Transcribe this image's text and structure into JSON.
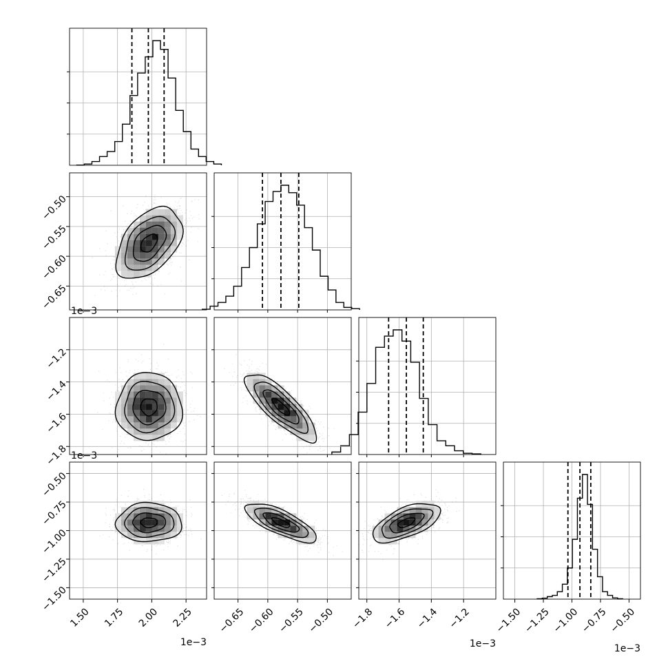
{
  "chart_data": {
    "type": "corner",
    "grid": true,
    "quantiles": [
      0.16,
      0.5,
      0.84
    ],
    "contour_levels": [
      "0.5 sigma",
      "1 sigma",
      "1.5 sigma",
      "2 sigma"
    ],
    "params": [
      {
        "id": "p0",
        "center": 1.98,
        "sd": 0.12,
        "lim": [
          1.4,
          2.4
        ],
        "quantile_values": [
          1.855,
          1.975,
          2.09
        ],
        "ticks": [
          1.5,
          1.75,
          2.0,
          2.25
        ],
        "tick_labels": [
          "1.50",
          "1.75",
          "2.00",
          "2.25"
        ],
        "offset_label": "1e−3"
      },
      {
        "id": "p1",
        "center": -0.578,
        "sd": 0.03,
        "lim": [
          -0.69,
          -0.46
        ],
        "quantile_values": [
          -0.609,
          -0.578,
          -0.548
        ],
        "ticks": [
          -0.65,
          -0.6,
          -0.55,
          -0.5
        ],
        "tick_labels": [
          "−0.65",
          "−0.60",
          "−0.55",
          "−0.50"
        ],
        "offset_label": "1e−3"
      },
      {
        "id": "p2",
        "center": -1.555,
        "sd": 0.105,
        "lim": [
          -1.85,
          -1.0
        ],
        "quantile_values": [
          -1.665,
          -1.555,
          -1.45
        ],
        "ticks": [
          -1.8,
          -1.6,
          -1.4,
          -1.2
        ],
        "tick_labels": [
          "−1.8",
          "−1.6",
          "−1.4",
          "−1.2"
        ],
        "offset_label": "1e−3"
      },
      {
        "id": "p3",
        "center": -0.93,
        "sd": 0.085,
        "lim": [
          -1.6,
          -0.4
        ],
        "quantile_values": [
          -1.035,
          -0.93,
          -0.835
        ],
        "ticks": [
          -1.5,
          -1.25,
          -1.0,
          -0.75,
          -0.5
        ],
        "tick_labels": [
          "−1.50",
          "−1.25",
          "−1.00",
          "−0.75",
          "−0.50"
        ],
        "offset_label": "1e−3"
      }
    ],
    "correlations": {
      "1,0": 0.45,
      "2,0": 0.0,
      "2,1": -0.82,
      "3,0": 0.0,
      "3,1": -0.75,
      "3,2": 0.6
    },
    "histograms": {
      "p0": [
        0.002,
        0.01,
        0.03,
        0.07,
        0.11,
        0.19,
        0.33,
        0.56,
        0.74,
        0.87,
        1.0,
        0.93,
        0.7,
        0.44,
        0.27,
        0.13,
        0.07,
        0.03,
        0.01
      ],
      "p1": [
        0.005,
        0.03,
        0.06,
        0.11,
        0.19,
        0.34,
        0.5,
        0.69,
        0.87,
        0.95,
        1.0,
        0.94,
        0.84,
        0.66,
        0.48,
        0.27,
        0.16,
        0.06,
        0.02,
        0.01
      ],
      "p2": [
        0.02,
        0.07,
        0.16,
        0.34,
        0.57,
        0.86,
        0.95,
        1.0,
        0.91,
        0.74,
        0.45,
        0.24,
        0.11,
        0.07,
        0.03,
        0.01,
        0.005
      ],
      "p3": [
        0.003,
        0.008,
        0.02,
        0.03,
        0.06,
        0.12,
        0.25,
        0.48,
        0.81,
        1.0,
        0.76,
        0.4,
        0.18,
        0.06,
        0.03,
        0.01,
        0.003
      ]
    }
  }
}
